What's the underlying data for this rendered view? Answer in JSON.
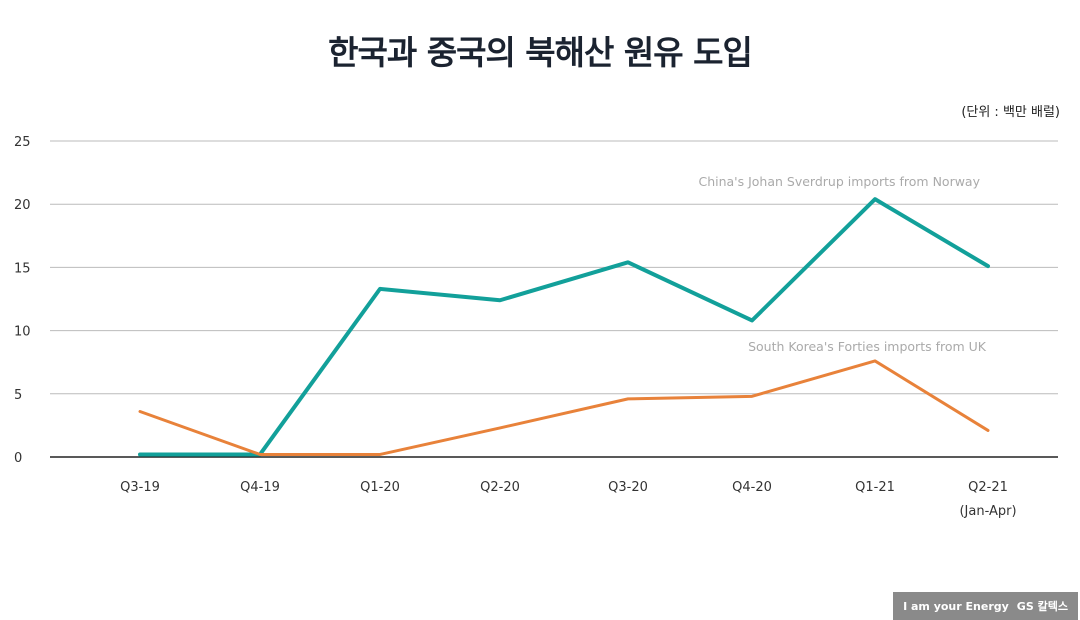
{
  "chart_data": {
    "type": "line",
    "title": "한국과 중국의 북해산 원유 도입",
    "unit_label": "(단위 : 백만 배럴)",
    "categories": [
      "Q3-19",
      "Q4-19",
      "Q1-20",
      "Q2-20",
      "Q3-20",
      "Q4-20",
      "Q1-21",
      "Q2-21"
    ],
    "category_sublabels": {
      "Q2-21": "(Jan-Apr)"
    },
    "ylim": [
      0,
      25
    ],
    "yticks": [
      0,
      5,
      10,
      15,
      20,
      25
    ],
    "grid": true,
    "series": [
      {
        "name": "China's Johan Sverdrup imports from Norway",
        "color": "#12a09a",
        "values": [
          0.2,
          0.2,
          13.3,
          12.4,
          15.4,
          10.8,
          20.4,
          15.1
        ]
      },
      {
        "name": "South Korea's Forties imports from UK",
        "color": "#e8823a",
        "values": [
          3.6,
          0.2,
          0.2,
          2.3,
          4.6,
          4.8,
          7.6,
          2.1
        ]
      }
    ]
  },
  "logo": {
    "slogan": "I am your Energy",
    "brand": "GS 칼텍스"
  }
}
